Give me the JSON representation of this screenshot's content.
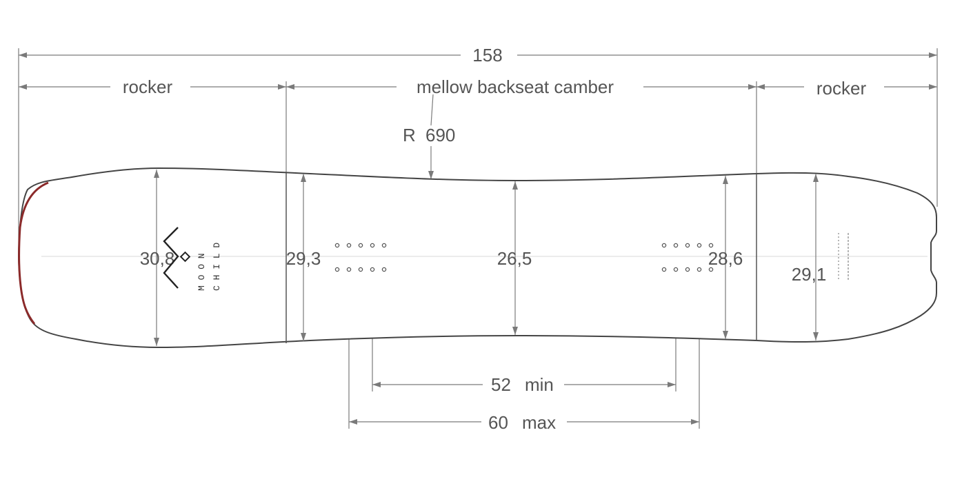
{
  "drawing": {
    "overall_length": "158",
    "zones": {
      "nose_rocker": "rocker",
      "camber": "mellow backseat camber",
      "tail_rocker": "rocker"
    },
    "sidecut_radius": {
      "prefix": "R",
      "value": "690"
    },
    "widths": {
      "nose_width": "30,8",
      "nose_contact_width": "29,3",
      "waist_width": "26,5",
      "tail_contact_width": "28,6",
      "tail_width": "29,1"
    },
    "stance": {
      "min_value": "52",
      "min_label": "min",
      "max_value": "60",
      "max_label": "max"
    },
    "logo": {
      "line1": "M O O N",
      "line2": "C H I L D"
    },
    "colors": {
      "outline": "#444444",
      "nose_edge": "#8b2a2a",
      "dimension": "#7a7a7a"
    }
  }
}
